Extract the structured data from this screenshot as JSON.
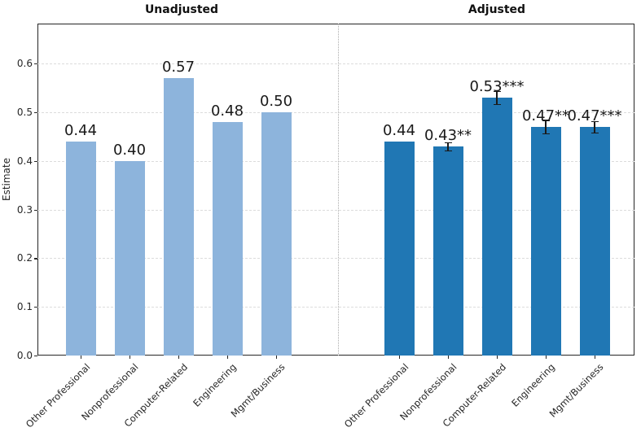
{
  "figure": {
    "left_panel_title": "Unadjusted",
    "right_panel_title": "Adjusted"
  },
  "chart_data": {
    "type": "bar",
    "title": "",
    "xlabel": "",
    "ylabel": "Estimate",
    "categories": [
      "Other Professional",
      "Nonprofessional",
      "Computer-Related",
      "Engineering",
      "Mgmt/Business"
    ],
    "series": [
      {
        "name": "Unadjusted",
        "values": [
          0.44,
          0.4,
          0.57,
          0.48,
          0.5
        ],
        "labels": [
          "0.44",
          "0.40",
          "0.57",
          "0.48",
          "0.50"
        ],
        "errors": [
          0,
          0,
          0,
          0,
          0
        ],
        "color": "#8db4dc"
      },
      {
        "name": "Adjusted",
        "values": [
          0.44,
          0.43,
          0.53,
          0.47,
          0.47
        ],
        "labels": [
          "0.44",
          "0.43**",
          "0.53***",
          "0.47**",
          "0.47***"
        ],
        "errors": [
          0,
          0.008,
          0.013,
          0.014,
          0.012
        ],
        "color": "#2077b4"
      }
    ],
    "yticks": [
      "0.0",
      "0.1",
      "0.2",
      "0.3",
      "0.4",
      "0.5",
      "0.6"
    ],
    "ylim": [
      0,
      0.682
    ],
    "grid": "horizontal dashed gridlines at 0.1 intervals",
    "separator": "vertical dotted line between Unadjusted and Adjusted groups",
    "legend": "none"
  },
  "colors": {
    "unadjusted_bar": "#8db4dc",
    "adjusted_bar": "#2077b4",
    "grid": "#dcdcdc",
    "spine": "#262626",
    "corner_artifact": "#7d1618"
  }
}
